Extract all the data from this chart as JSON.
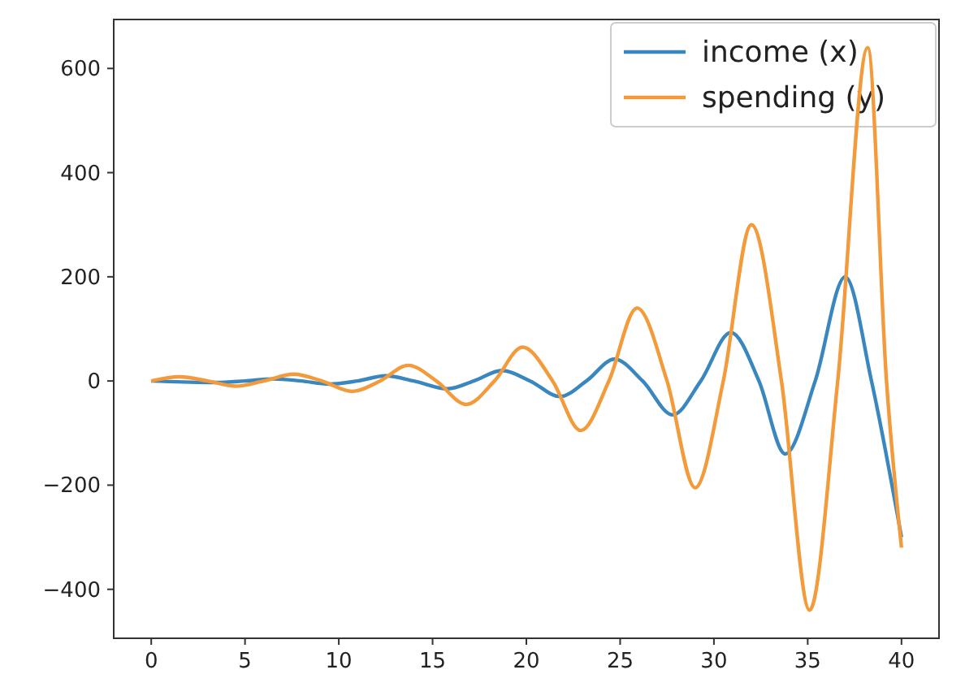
{
  "chart_data": {
    "type": "line",
    "xlim": [
      -2,
      42
    ],
    "ylim": [
      -494,
      694
    ],
    "xticks": [
      0,
      5,
      10,
      15,
      20,
      25,
      30,
      35,
      40
    ],
    "yticks": [
      -400,
      -200,
      0,
      200,
      400,
      600
    ],
    "grid": false,
    "legend": "top right",
    "marker": "none",
    "line_style": "solid",
    "series": [
      {
        "name": "income (x)",
        "color": "#3a87c0",
        "x": [
          0,
          3.5,
          5,
          6.5,
          8,
          9.5,
          11,
          12.5,
          14,
          15.8,
          17.2,
          18.7,
          20.2,
          21.8,
          23.2,
          24.7,
          26.2,
          27.8,
          29.3,
          30.9,
          32.4,
          33.8,
          35.4,
          37,
          38.4,
          40
        ],
        "values": [
          0,
          -3,
          0,
          4,
          0,
          -6,
          0,
          10,
          0,
          -15,
          0,
          20,
          0,
          -30,
          0,
          42,
          0,
          -65,
          0,
          93,
          0,
          -140,
          0,
          200,
          0,
          -300
        ]
      },
      {
        "name": "spending (y)",
        "color": "#f39a3a",
        "x": [
          0,
          1.5,
          3,
          4.5,
          6,
          7.6,
          9.1,
          10.7,
          12.2,
          13.7,
          15.2,
          16.8,
          18.3,
          19.8,
          21.4,
          22.9,
          24.4,
          25.9,
          27.5,
          29,
          30.5,
          32,
          33.6,
          35.1,
          36.6,
          38.2,
          39.2,
          40
        ],
        "values": [
          0,
          8,
          0,
          -10,
          0,
          13,
          0,
          -20,
          0,
          30,
          0,
          -45,
          0,
          65,
          0,
          -95,
          0,
          140,
          0,
          -205,
          0,
          300,
          0,
          -440,
          0,
          640,
          0,
          -320
        ]
      }
    ]
  }
}
